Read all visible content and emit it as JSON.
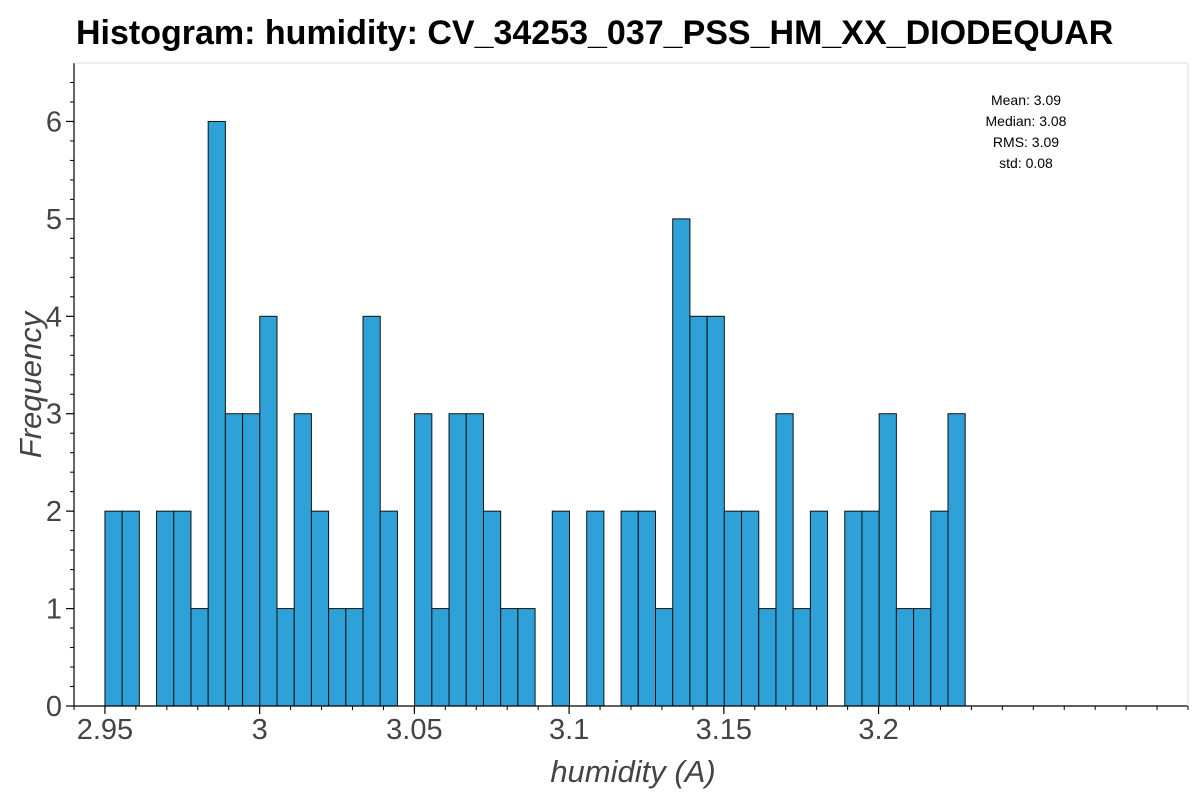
{
  "chart_data": {
    "type": "bar",
    "title": "Histogram: humidity: CV_34253_037_PSS_HM_XX_DIODEQUAR",
    "xlabel": "humidity (A)",
    "ylabel": "Frequency",
    "xlim": [
      2.94,
      3.3
    ],
    "ylim": [
      0,
      6.6
    ],
    "x_ticks": [
      2.95,
      3.0,
      3.05,
      3.1,
      3.15,
      3.2
    ],
    "x_tick_labels": [
      "2.95",
      "3",
      "3.05",
      "3.1",
      "3.15",
      "3.2"
    ],
    "y_ticks": [
      0,
      1,
      2,
      3,
      4,
      5,
      6
    ],
    "bin_start": 2.95,
    "bin_width": 0.00556,
    "values": [
      2,
      2,
      0,
      2,
      2,
      1,
      6,
      3,
      3,
      4,
      1,
      3,
      2,
      1,
      1,
      4,
      2,
      0,
      3,
      1,
      3,
      3,
      2,
      1,
      1,
      0,
      2,
      0,
      2,
      0,
      2,
      2,
      1,
      5,
      4,
      4,
      2,
      2,
      1,
      3,
      1,
      2,
      0,
      2,
      2,
      3,
      1,
      1,
      2,
      3
    ],
    "bar_color": "#2ea1d8",
    "grid": false,
    "stats": [
      "Mean: 3.09",
      "Median: 3.08",
      "RMS: 3.09",
      "std: 0.08"
    ]
  }
}
